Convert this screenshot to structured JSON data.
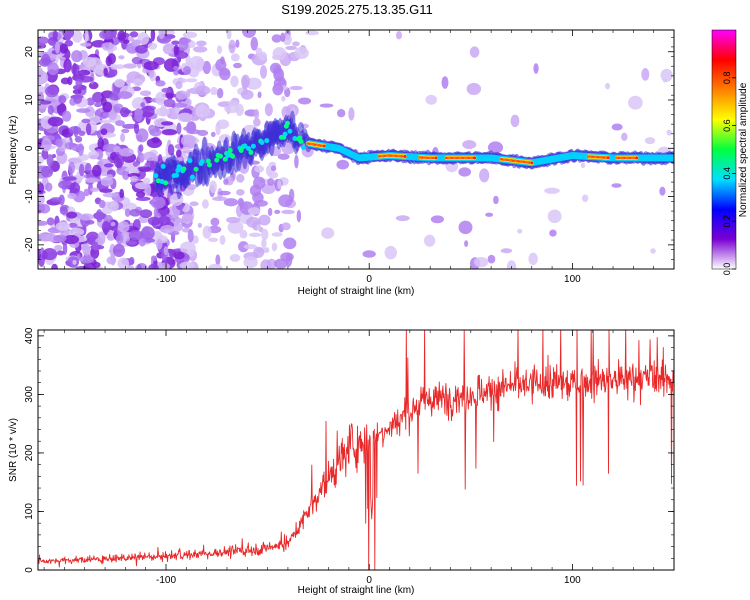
{
  "title": "S199.2025.275.13.35.G11",
  "chart_data": [
    {
      "type": "heatmap",
      "xlabel": "Height of straight line (km)",
      "ylabel": "Frequency (Hz)",
      "xlim": [
        -163,
        150
      ],
      "ylim": [
        -25,
        24.5
      ],
      "xticks": [
        -100,
        0,
        100
      ],
      "yticks": [
        -20,
        -10,
        0,
        10,
        20
      ],
      "colorbar": {
        "label": "Normalized spectral amplitude",
        "range": [
          0,
          1
        ],
        "ticks": [
          0.0,
          0.2,
          0.4,
          0.6,
          0.8
        ],
        "tick_labels": [
          "0.0",
          "0.2",
          "0.4",
          "0.6",
          "0.8"
        ],
        "colors": [
          "#ffffff",
          "#7b00d4",
          "#0000ff",
          "#00e0ff",
          "#00ff40",
          "#ffff00",
          "#ff8000",
          "#ff0000",
          "#ff00ff"
        ]
      },
      "ridge": {
        "description_points_km_hz": [
          [
            -100,
            -6
          ],
          [
            -80,
            -3
          ],
          [
            -60,
            0
          ],
          [
            -40,
            4
          ],
          [
            -30,
            1
          ],
          [
            -15,
            0
          ],
          [
            -5,
            -2
          ],
          [
            10,
            -1.5
          ],
          [
            30,
            -2
          ],
          [
            60,
            -2
          ],
          [
            80,
            -3
          ],
          [
            100,
            -1.5
          ],
          [
            120,
            -2
          ],
          [
            148,
            -2
          ]
        ]
      }
    },
    {
      "type": "line",
      "xlabel": "Height of straight line (km)",
      "ylabel": "SNR (10 * v/v)",
      "xlim": [
        -163,
        150
      ],
      "ylim": [
        0,
        410
      ],
      "xticks": [
        -100,
        0,
        100
      ],
      "yticks": [
        0,
        100,
        200,
        300,
        400
      ],
      "line_color": "#e8292a",
      "trend_km_snr": [
        [
          -163,
          15
        ],
        [
          -120,
          20
        ],
        [
          -80,
          28
        ],
        [
          -55,
          35
        ],
        [
          -40,
          45
        ],
        [
          -30,
          100
        ],
        [
          -20,
          160
        ],
        [
          -10,
          210
        ],
        [
          0,
          225
        ],
        [
          10,
          245
        ],
        [
          20,
          275
        ],
        [
          30,
          290
        ],
        [
          50,
          300
        ],
        [
          70,
          315
        ],
        [
          100,
          320
        ],
        [
          150,
          330
        ]
      ]
    }
  ]
}
